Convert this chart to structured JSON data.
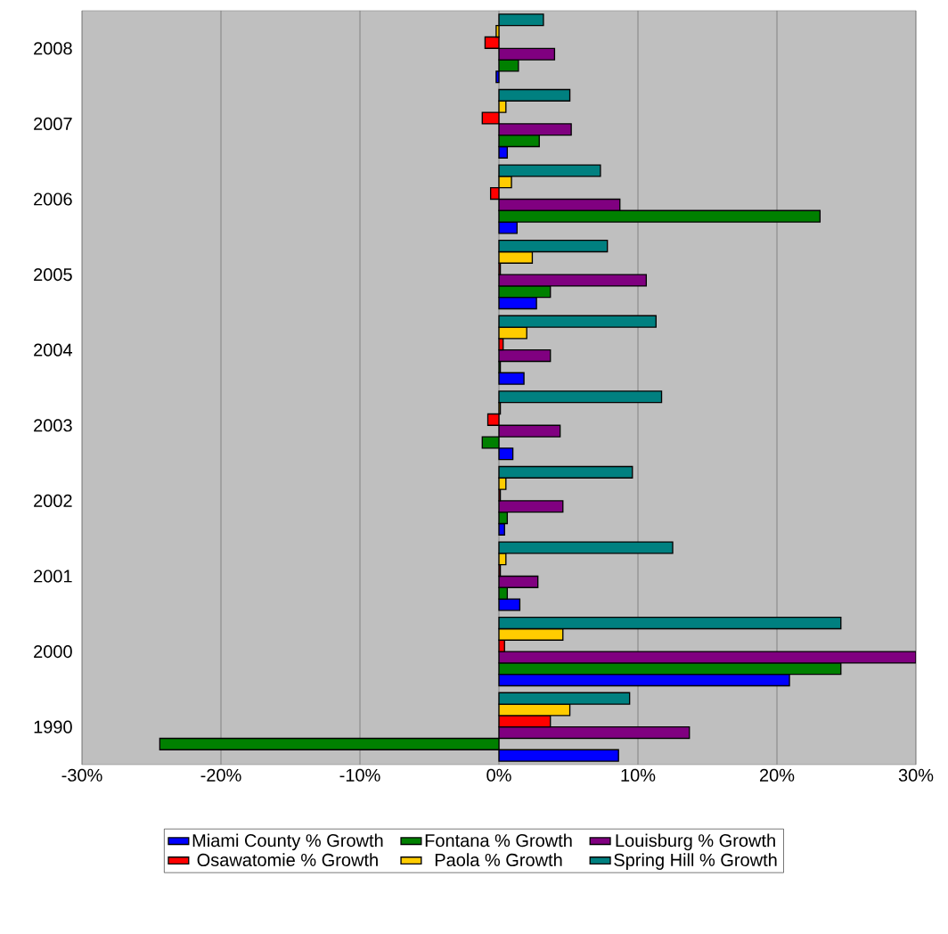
{
  "chart_data": {
    "type": "bar",
    "orientation": "horizontal",
    "categories": [
      "2008",
      "2007",
      "2006",
      "2005",
      "2004",
      "2003",
      "2002",
      "2001",
      "2000",
      "1990"
    ],
    "series": [
      {
        "name": "Miami County % Growth",
        "color": "#0000ff",
        "values": [
          -0.2,
          0.6,
          1.3,
          2.7,
          1.8,
          1.0,
          0.4,
          1.5,
          20.9,
          8.6
        ]
      },
      {
        "name": "Fontana % Growth",
        "color": "#008000",
        "values": [
          1.4,
          2.9,
          23.1,
          3.7,
          0.1,
          -1.2,
          0.6,
          0.6,
          24.6,
          -24.4
        ]
      },
      {
        "name": "Louisburg % Growth",
        "color": "#800080",
        "values": [
          4.0,
          5.2,
          8.7,
          10.6,
          3.7,
          4.4,
          4.6,
          2.8,
          30.0,
          13.7
        ]
      },
      {
        "name": "Osawatomie % Growth",
        "color": "#ff0000",
        "values": [
          -1.0,
          -1.2,
          -0.6,
          0.1,
          0.3,
          -0.8,
          0.1,
          0.1,
          0.4,
          3.7
        ]
      },
      {
        "name": "Paola % Growth",
        "color": "#ffcc00",
        "values": [
          -0.2,
          0.5,
          0.9,
          2.4,
          2.0,
          0.1,
          0.5,
          0.5,
          4.6,
          5.1
        ]
      },
      {
        "name": "Spring Hill % Growth",
        "color": "#008080",
        "values": [
          3.2,
          5.1,
          7.3,
          7.8,
          11.3,
          11.7,
          9.6,
          12.5,
          24.6,
          9.4
        ]
      }
    ],
    "xlim": [
      -30,
      30
    ],
    "xticks": [
      {
        "value": -30,
        "label": "-30%"
      },
      {
        "value": -20,
        "label": "-20%"
      },
      {
        "value": -10,
        "label": "-10%"
      },
      {
        "value": 0,
        "label": "0%"
      },
      {
        "value": 10,
        "label": "10%"
      },
      {
        "value": 20,
        "label": "20%"
      },
      {
        "value": 30,
        "label": "30%"
      }
    ],
    "grid": "x",
    "legend": "bottom"
  }
}
